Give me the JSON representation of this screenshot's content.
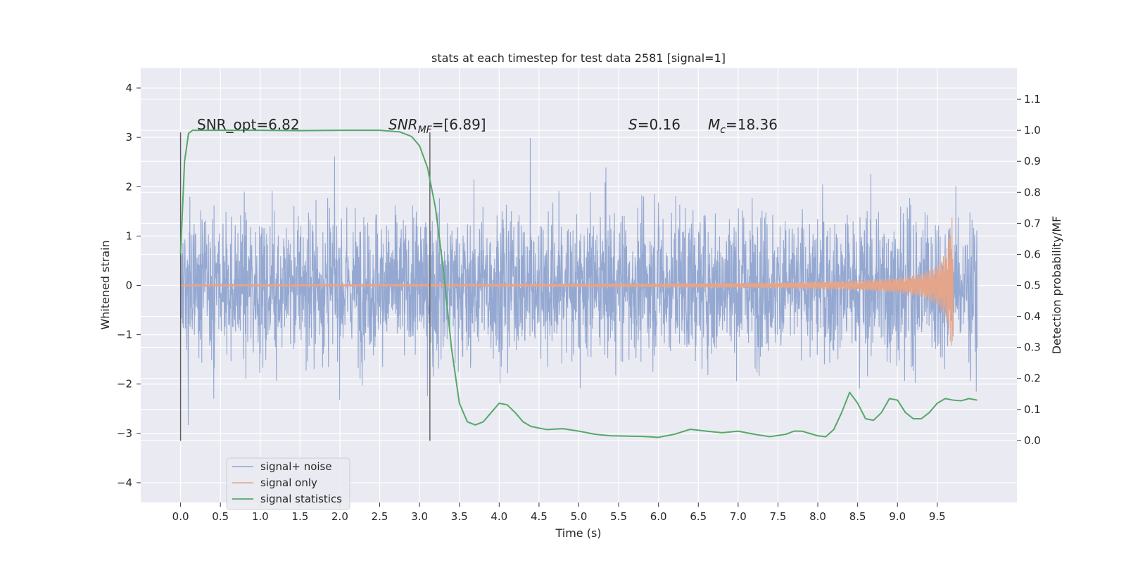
{
  "chart_data": {
    "type": "line",
    "title": "stats at each timestep for test data 2581 [signal=1]",
    "xlabel": "Time (s)",
    "ylabel_left": "Whitened strain",
    "ylabel_right": "Detection probability/MF",
    "xlim": [
      -0.5,
      10.5
    ],
    "ylim_left": [
      -4.4,
      4.4
    ],
    "ylim_right": [
      -0.2,
      1.2
    ],
    "x_ticks": [
      "0.0",
      "0.5",
      "1.0",
      "1.5",
      "2.0",
      "2.5",
      "3.0",
      "3.5",
      "4.0",
      "4.5",
      "5.0",
      "5.5",
      "6.0",
      "6.5",
      "7.0",
      "7.5",
      "8.0",
      "8.5",
      "9.0",
      "9.5"
    ],
    "y_left_ticks": [
      "4",
      "3",
      "2",
      "1",
      "0",
      "−1",
      "−2",
      "−3",
      "−4"
    ],
    "y_right_ticks": [
      "1.1",
      "1.0",
      "0.9",
      "0.8",
      "0.7",
      "0.6",
      "0.5",
      "0.4",
      "0.3",
      "0.2",
      "0.1",
      "0.0"
    ],
    "grid": true,
    "legend_position": "lower-left",
    "annotations": {
      "snr_opt": "SNR_opt=6.82",
      "snr_mf_label": "SNR",
      "snr_mf_sub": "MF",
      "snr_mf_value": "=[6.89]",
      "s_label": "S",
      "s_value": "=0.16",
      "mc_label": "M",
      "mc_sub": "c",
      "mc_value": "=18.36"
    },
    "vertical_markers": [
      0.0,
      3.13
    ],
    "series": [
      {
        "name": "signal+ noise",
        "color": "#8fa4cf",
        "x_range": [
          0.0,
          10.0
        ],
        "approx_envelope": [
          -2.5,
          2.5
        ],
        "note_values": "dense noise trace"
      },
      {
        "name": "signal only",
        "color": "#e5a58a",
        "x_range": [
          0.0,
          9.7
        ],
        "amplitude_envelope": {
          "x": [
            0.0,
            4.0,
            6.0,
            7.5,
            8.5,
            9.0,
            9.3,
            9.5,
            9.6,
            9.65,
            9.7
          ],
          "y": [
            0.02,
            0.03,
            0.04,
            0.06,
            0.1,
            0.15,
            0.24,
            0.4,
            0.65,
            1.0,
            1.55
          ]
        }
      },
      {
        "name": "signal statistics",
        "color": "#55a868",
        "axis": "right",
        "x": [
          0.0,
          0.05,
          0.1,
          0.15,
          0.3,
          0.5,
          1.0,
          1.5,
          2.0,
          2.5,
          2.75,
          2.9,
          3.0,
          3.1,
          3.2,
          3.3,
          3.4,
          3.5,
          3.6,
          3.7,
          3.8,
          3.9,
          4.0,
          4.1,
          4.2,
          4.3,
          4.4,
          4.6,
          4.8,
          5.0,
          5.2,
          5.4,
          5.6,
          5.8,
          6.0,
          6.2,
          6.4,
          6.6,
          6.8,
          7.0,
          7.2,
          7.4,
          7.6,
          7.7,
          7.8,
          8.0,
          8.1,
          8.2,
          8.3,
          8.4,
          8.5,
          8.6,
          8.7,
          8.8,
          8.9,
          9.0,
          9.1,
          9.2,
          9.3,
          9.4,
          9.5,
          9.6,
          9.7,
          9.8,
          9.9,
          10.0
        ],
        "y": [
          0.6,
          0.9,
          0.99,
          1.0,
          1.0,
          1.0,
          1.0,
          0.999,
          1.0,
          1.0,
          0.995,
          0.98,
          0.95,
          0.88,
          0.75,
          0.55,
          0.3,
          0.12,
          0.06,
          0.05,
          0.06,
          0.09,
          0.12,
          0.115,
          0.09,
          0.06,
          0.045,
          0.035,
          0.038,
          0.03,
          0.02,
          0.015,
          0.014,
          0.013,
          0.01,
          0.02,
          0.036,
          0.03,
          0.025,
          0.03,
          0.02,
          0.012,
          0.02,
          0.03,
          0.03,
          0.015,
          0.012,
          0.035,
          0.09,
          0.155,
          0.12,
          0.07,
          0.065,
          0.09,
          0.135,
          0.13,
          0.09,
          0.07,
          0.07,
          0.09,
          0.12,
          0.135,
          0.13,
          0.128,
          0.135,
          0.13
        ]
      }
    ]
  },
  "colors": {
    "background": "#eaeaf2",
    "grid": "#ffffff",
    "marker": "#5a5a5a"
  }
}
